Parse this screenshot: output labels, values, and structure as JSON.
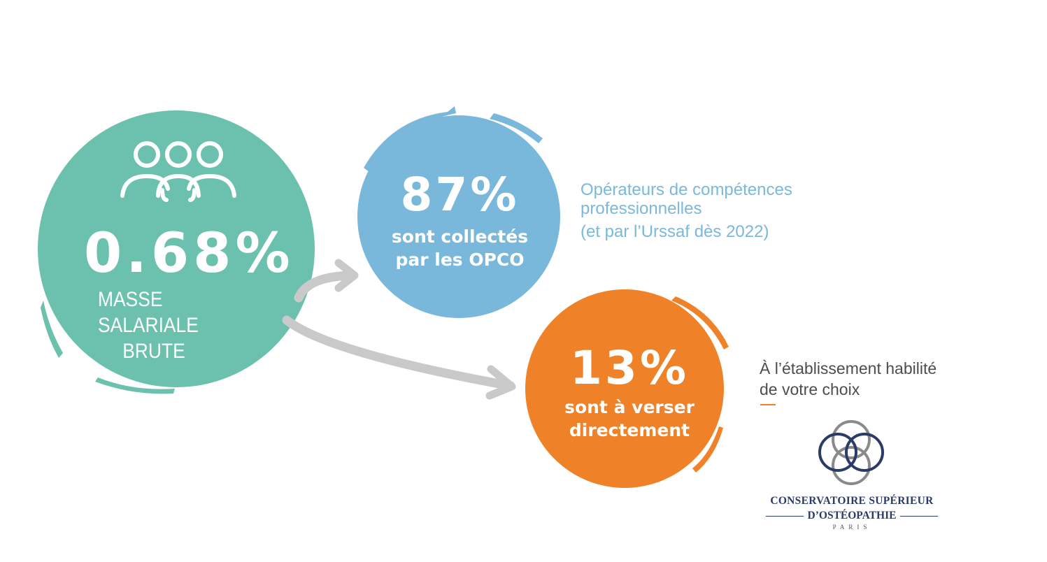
{
  "green": {
    "percent": "0.68%",
    "label_line1": "MASSE SALARIALE",
    "label_line2": "BRUTE",
    "color": "#6bc1ad",
    "icon": "people-group-icon"
  },
  "blue": {
    "percent": "87%",
    "line1": "sont collectés",
    "line2": "par les OPCO",
    "color": "#79b8db"
  },
  "orange": {
    "percent": "13%",
    "line1": "sont à verser",
    "line2": "directement",
    "color": "#ef8228"
  },
  "opco_info": {
    "line1": "Opérateurs de compétences",
    "line2": "professionnelles",
    "note": "(et par l’Urssaf dès 2022)"
  },
  "direct_info": {
    "line1": "À l’établissement habilité",
    "line2": "de votre choix"
  },
  "logo": {
    "name": "CONSERVATOIRE SUPÉRIEUR",
    "subtitle": "D’OSTÉOPATHIE",
    "city": "PARIS"
  },
  "arrow_color": "#c9c9c9"
}
